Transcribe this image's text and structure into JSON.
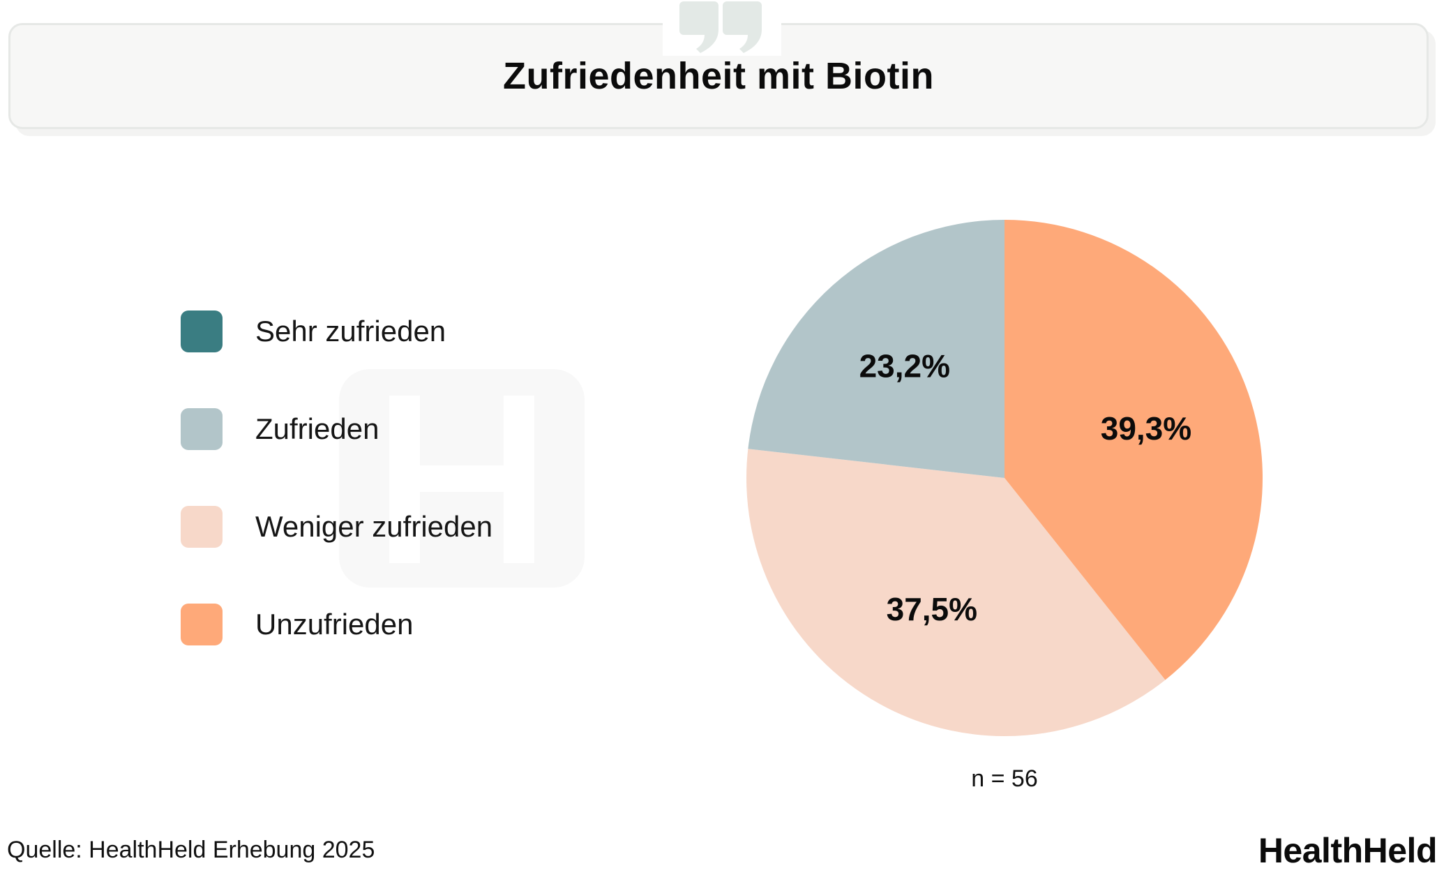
{
  "header": {
    "title": "Zufriedenheit mit Biotin"
  },
  "chart_data": {
    "type": "pie",
    "title": "Zufriedenheit mit Biotin",
    "legend_position": "left",
    "categories": [
      "Sehr zufrieden",
      "Zufrieden",
      "Weniger zufrieden",
      "Unzufrieden"
    ],
    "values": [
      0,
      23.2,
      37.5,
      39.3
    ],
    "value_labels": [
      "",
      "23,2%",
      "37,5%",
      "39,3%"
    ],
    "colors": [
      "#3a7d82",
      "#b2c5c9",
      "#f7d8c9",
      "#fea979"
    ],
    "sample_size_label": "n = 56"
  },
  "footer": {
    "source": "Quelle: HealthHeld Erhebung 2025",
    "brand": "HealthHeld"
  },
  "icons": {
    "header": "quote-icon",
    "watermark": "logo-h-icon"
  }
}
